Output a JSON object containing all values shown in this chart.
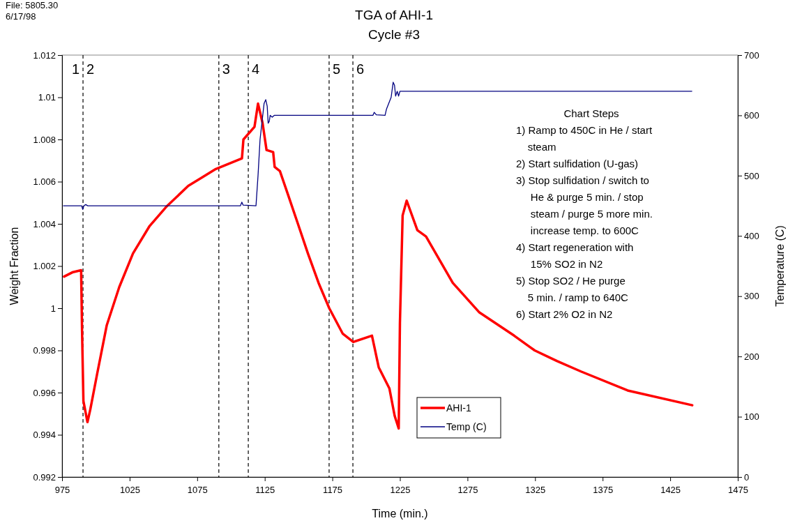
{
  "chart_data": {
    "type": "line",
    "title": "TGA of AHI-1",
    "subtitle": "Cycle #3",
    "xlabel": "Time (min.)",
    "ylabel": "Weight Fraction",
    "y2label": "Temperature (C)",
    "xlim": [
      975,
      1475
    ],
    "xticks": [
      975,
      1025,
      1075,
      1125,
      1175,
      1225,
      1275,
      1325,
      1375,
      1425,
      1475
    ],
    "ylim": [
      0.992,
      1.012
    ],
    "yticks": [
      0.992,
      0.994,
      0.996,
      0.998,
      1,
      1.002,
      1.004,
      1.006,
      1.008,
      1.01,
      1.012
    ],
    "y2lim": [
      0,
      700
    ],
    "y2ticks": [
      0,
      100,
      200,
      300,
      400,
      500,
      600,
      700
    ],
    "grid": false,
    "legend": "bottom",
    "marker": "none",
    "line_style": "solid",
    "series": [
      {
        "name": "AHI-1",
        "color": "#ff0000",
        "x": [
          976.5,
          982.6,
          989.1,
          989.8,
          990.8,
          993.8,
          995.9,
          1001.0,
          1008.1,
          1017.3,
          1027.5,
          1039.8,
          1052.0,
          1068.4,
          1088.8,
          1108.1,
          1109.2,
          1117.4,
          1120.0,
          1123.3,
          1126.3,
          1131.2,
          1132.3,
          1136.2,
          1142.1,
          1149.0,
          1156.9,
          1164.8,
          1172.7,
          1182.6,
          1190.5,
          1204.3,
          1206.3,
          1209.3,
          1217.2,
          1221.1,
          1224.1,
          1225.0,
          1227.0,
          1230.0,
          1237.9,
          1244.3,
          1264.1,
          1283.8,
          1309.5,
          1324.7,
          1341.1,
          1359.0,
          1393.5,
          1441.3
        ],
        "values": [
          1.0015,
          1.0017,
          1.0018,
          0.9989,
          0.9956,
          0.9946,
          0.9952,
          0.9969,
          0.9992,
          1.001,
          1.0026,
          1.0039,
          1.0048,
          1.0058,
          1.0066,
          1.0071,
          1.008,
          1.0086,
          1.0097,
          1.0088,
          1.0075,
          1.0074,
          1.0067,
          1.0065,
          1.0054,
          1.0041,
          1.0026,
          1.0012,
          1.0,
          0.9988,
          0.9984,
          0.9987,
          0.9981,
          0.9972,
          0.9962,
          0.9949,
          0.9943,
          0.9993,
          1.0044,
          1.0051,
          1.0037,
          1.0034,
          1.0012,
          0.9998,
          0.9987,
          0.998,
          0.9975,
          0.997,
          0.9961,
          0.9954
        ]
      },
      {
        "name": "Temp (C)",
        "color": "#000080",
        "axis": "y2",
        "x": [
          976,
          989.5,
          990.3,
          991.2,
          992.5,
          994,
          1107,
          1108,
          1109,
          1118.5,
          1120,
          1121.5,
          1124.5,
          1125.7,
          1126.8,
          1127.5,
          1128.3,
          1129,
          1130.5,
          1132,
          1205,
          1206,
          1207.5,
          1214,
          1215,
          1218.5,
          1220,
          1221,
          1221.8,
          1223,
          1224,
          1225,
          1441
        ],
        "values": [
          450,
          450,
          444,
          450,
          452,
          450,
          450,
          456,
          451,
          450,
          500,
          560,
          620,
          626,
          615,
          587,
          590,
          600,
          597,
          600,
          600,
          605,
          601,
          600,
          610,
          630,
          655,
          650,
          632,
          640,
          632,
          640,
          640
        ]
      }
    ],
    "ref_lines": [
      {
        "axis": "x",
        "value": 990.5,
        "color": "#000000",
        "line_style": "dashed"
      },
      {
        "axis": "x",
        "value": 1091,
        "color": "#000000",
        "line_style": "dashed"
      },
      {
        "axis": "x",
        "value": 1112.8,
        "color": "#000000",
        "line_style": "dashed"
      },
      {
        "axis": "x",
        "value": 1172.6,
        "color": "#000000",
        "line_style": "dashed"
      },
      {
        "axis": "x",
        "value": 1190.2,
        "color": "#000000",
        "line_style": "dashed"
      }
    ],
    "annotations": [
      "File: 5805.30",
      "6/17/98",
      "Chart Steps\n1) Ramp to 450C in He / start\n    steam\n2) Start sulfidation (U-gas)\n3) Stop sulfidation / switch to\n     He & purge 5 min. / stop\n     steam / purge 5 more min.\n     increase temp. to 600C\n4) Start regeneration with\n     15% SO2 in N2\n5) Stop SO2 / He purge\n    5 min. / ramp to 640C\n6) Start 2% O2 in N2",
      "1",
      "2",
      "3",
      "4",
      "5",
      "6"
    ]
  }
}
